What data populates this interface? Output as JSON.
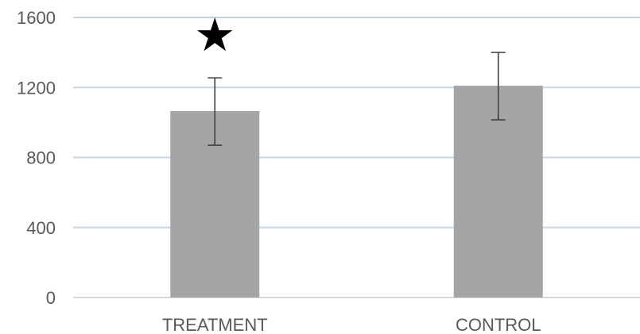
{
  "chart_data": {
    "type": "bar",
    "title": "",
    "xlabel": "",
    "ylabel": "",
    "categories": [
      "TREATMENT",
      "CONTROL"
    ],
    "values": [
      1065,
      1210
    ],
    "error_low": [
      870,
      1015
    ],
    "error_high": [
      1255,
      1400
    ],
    "annotations": [
      {
        "category": "TREATMENT",
        "symbol": "★"
      }
    ],
    "ylim": [
      0,
      1600
    ],
    "yticks": [
      0,
      400,
      800,
      1200,
      1600
    ],
    "grid": true,
    "legend": "none",
    "bar_color": "#a5a5a5",
    "grid_color": "#c5d5e8",
    "error_bar_color": "#404040"
  }
}
